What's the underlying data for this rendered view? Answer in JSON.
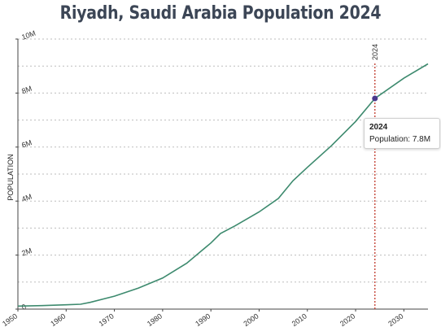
{
  "chart_data": {
    "type": "line",
    "title": "Riyadh, Saudi Arabia Population 2024",
    "ylabel": "POPULATION",
    "xlabel": "",
    "xlim": [
      1950,
      2035
    ],
    "ylim": [
      0,
      10000000
    ],
    "x_ticks": [
      1950,
      1960,
      1970,
      1980,
      1990,
      2000,
      2010,
      2020,
      2030
    ],
    "y_ticks": [
      {
        "value": 0,
        "label": "0"
      },
      {
        "value": 2000000,
        "label": "2M"
      },
      {
        "value": 4000000,
        "label": "4M"
      },
      {
        "value": 6000000,
        "label": "6M"
      },
      {
        "value": 8000000,
        "label": "8M"
      },
      {
        "value": 10000000,
        "label": "10M"
      }
    ],
    "grid": true,
    "line_color": "#3d8a6e",
    "marker_color": "#4a3a8c",
    "reference_line": {
      "x": 2024,
      "label": "2024",
      "color": "#c0392b"
    },
    "highlight": {
      "x": 2024,
      "y": 7800000
    },
    "series": [
      {
        "x": [
          1950,
          1955,
          1960,
          1963,
          1965,
          1970,
          1975,
          1980,
          1985,
          1988,
          1990,
          1992,
          1995,
          2000,
          2004,
          2007,
          2010,
          2015,
          2020,
          2024,
          2030,
          2035
        ],
        "values": [
          110000,
          130000,
          160000,
          180000,
          250000,
          480000,
          780000,
          1150000,
          1700000,
          2150000,
          2450000,
          2800000,
          3080000,
          3600000,
          4100000,
          4750000,
          5250000,
          6050000,
          6950000,
          7800000,
          8550000,
          9080000
        ]
      }
    ]
  },
  "tooltip": {
    "year": "2024",
    "text": "Population: 7.8M"
  }
}
